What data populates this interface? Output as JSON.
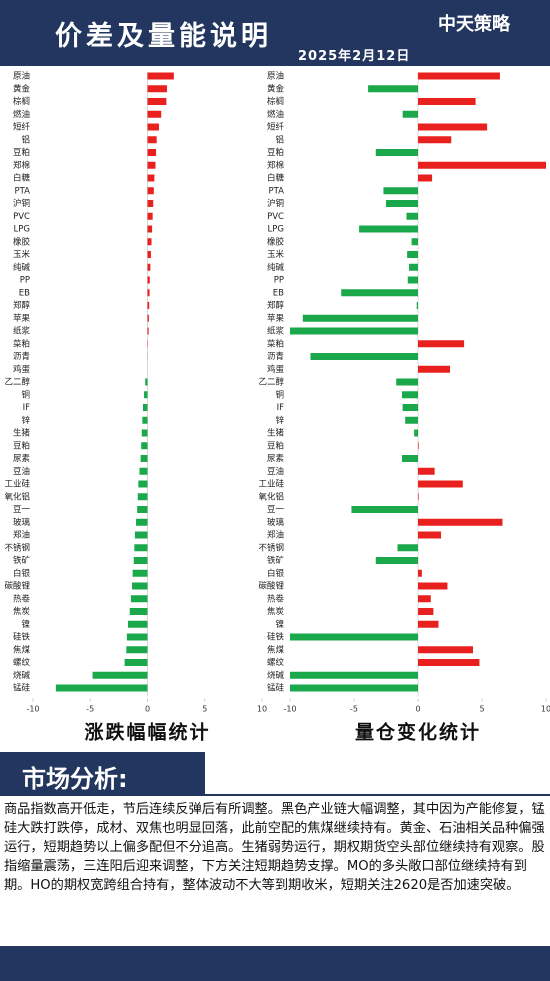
{
  "header": {
    "title": "价差及量能说明",
    "date": "2025年2月12日",
    "logo": "中天策略"
  },
  "chart_data": [
    {
      "type": "bar",
      "orientation": "horizontal",
      "title": "涨跌幅幅统计",
      "categories": [
        "原油",
        "黄金",
        "棕榈",
        "燃油",
        "短纤",
        "铝",
        "豆粕",
        "郑棉",
        "白糖",
        "PTA",
        "沪铜",
        "PVC",
        "LPG",
        "橡胶",
        "玉米",
        "纯碱",
        "PP",
        "EB",
        "郑醇",
        "苹果",
        "纸浆",
        "菜粕",
        "沥青",
        "鸡蛋",
        "乙二醇",
        "铜",
        "IF",
        "锌",
        "生猪",
        "豆粕",
        "尿素",
        "豆油",
        "工业硅",
        "氧化铝",
        "豆一",
        "玻璃",
        "郑油",
        "不锈钢",
        "铁矿",
        "白银",
        "碳酸锂",
        "热卷",
        "焦炭",
        "镍",
        "硅铁",
        "焦煤",
        "螺纹",
        "烧碱",
        "锰硅"
      ],
      "values": [
        2.3,
        1.7,
        1.65,
        1.2,
        1.0,
        0.8,
        0.75,
        0.7,
        0.6,
        0.55,
        0.5,
        0.45,
        0.4,
        0.35,
        0.3,
        0.25,
        0.2,
        0.18,
        0.15,
        0.12,
        0.1,
        0.03,
        0.01,
        0,
        -0.2,
        -0.3,
        -0.4,
        -0.45,
        -0.5,
        -0.55,
        -0.6,
        -0.7,
        -0.8,
        -0.85,
        -0.9,
        -1.0,
        -1.1,
        -1.15,
        -1.2,
        -1.3,
        -1.35,
        -1.45,
        -1.55,
        -1.7,
        -1.8,
        -1.85,
        -2.0,
        -4.8,
        -8.0
      ],
      "positive_color": "#e8201e",
      "negative_color": "#1aa84b",
      "xlim": [
        -10,
        10
      ],
      "xticks": [
        -10,
        -5,
        0,
        5,
        10
      ]
    },
    {
      "type": "bar",
      "orientation": "horizontal",
      "title": "量仓变化统计",
      "categories": [
        "原油",
        "黄金",
        "棕榈",
        "燃油",
        "短纤",
        "铝",
        "豆粕",
        "郑棉",
        "白糖",
        "PTA",
        "沪铜",
        "PVC",
        "LPG",
        "橡胶",
        "玉米",
        "纯碱",
        "PP",
        "EB",
        "郑醇",
        "苹果",
        "纸浆",
        "菜粕",
        "沥青",
        "鸡蛋",
        "乙二醇",
        "铜",
        "IF",
        "锌",
        "生猪",
        "豆粕",
        "尿素",
        "豆油",
        "工业硅",
        "氧化铝",
        "豆一",
        "玻璃",
        "郑油",
        "不锈钢",
        "铁矿",
        "白银",
        "碳酸锂",
        "热卷",
        "焦炭",
        "镍",
        "硅铁",
        "焦煤",
        "螺纹",
        "烧碱",
        "锰硅"
      ],
      "values": [
        6.4,
        -3.9,
        4.5,
        -1.2,
        5.4,
        2.6,
        -3.3,
        10,
        1.1,
        -2.7,
        -2.5,
        -0.9,
        -4.6,
        -0.5,
        -0.85,
        -0.7,
        -0.8,
        -6.0,
        -0.1,
        -9.0,
        -10,
        3.6,
        -8.4,
        2.5,
        -1.7,
        -1.25,
        -1.2,
        -1.0,
        -0.3,
        0.05,
        -1.25,
        1.3,
        3.5,
        0.05,
        -5.2,
        6.6,
        1.8,
        -1.6,
        -3.3,
        0.3,
        2.3,
        1.0,
        1.2,
        1.6,
        -10,
        4.3,
        4.8,
        -10,
        -10
      ],
      "positive_color": "#e8201e",
      "negative_color": "#1aa84b",
      "xlim": [
        -10,
        10
      ],
      "xticks": [
        -10,
        -5,
        0,
        5,
        10
      ]
    }
  ],
  "analysis": {
    "title": "市场分析:",
    "text": "商品指数高开低走，节后连续反弹后有所调整。黑色产业链大幅调整，其中因为产能修复，锰硅大跌打跌停，成材、双焦也明显回落，此前空配的焦煤继续持有。黄金、石油相关品种偏强运行，短期趋势以上偏多配但不分追高。生猪弱势运行，期权期货空头部位继续持有观察。股指缩量震荡，三连阳后迎来调整，下方关注短期趋势支撑。MO的多头敞口部位继续持有到期。HO的期权宽跨组合持有，整体波动不大等到期收米，短期关注2620是否加速突破。"
  }
}
